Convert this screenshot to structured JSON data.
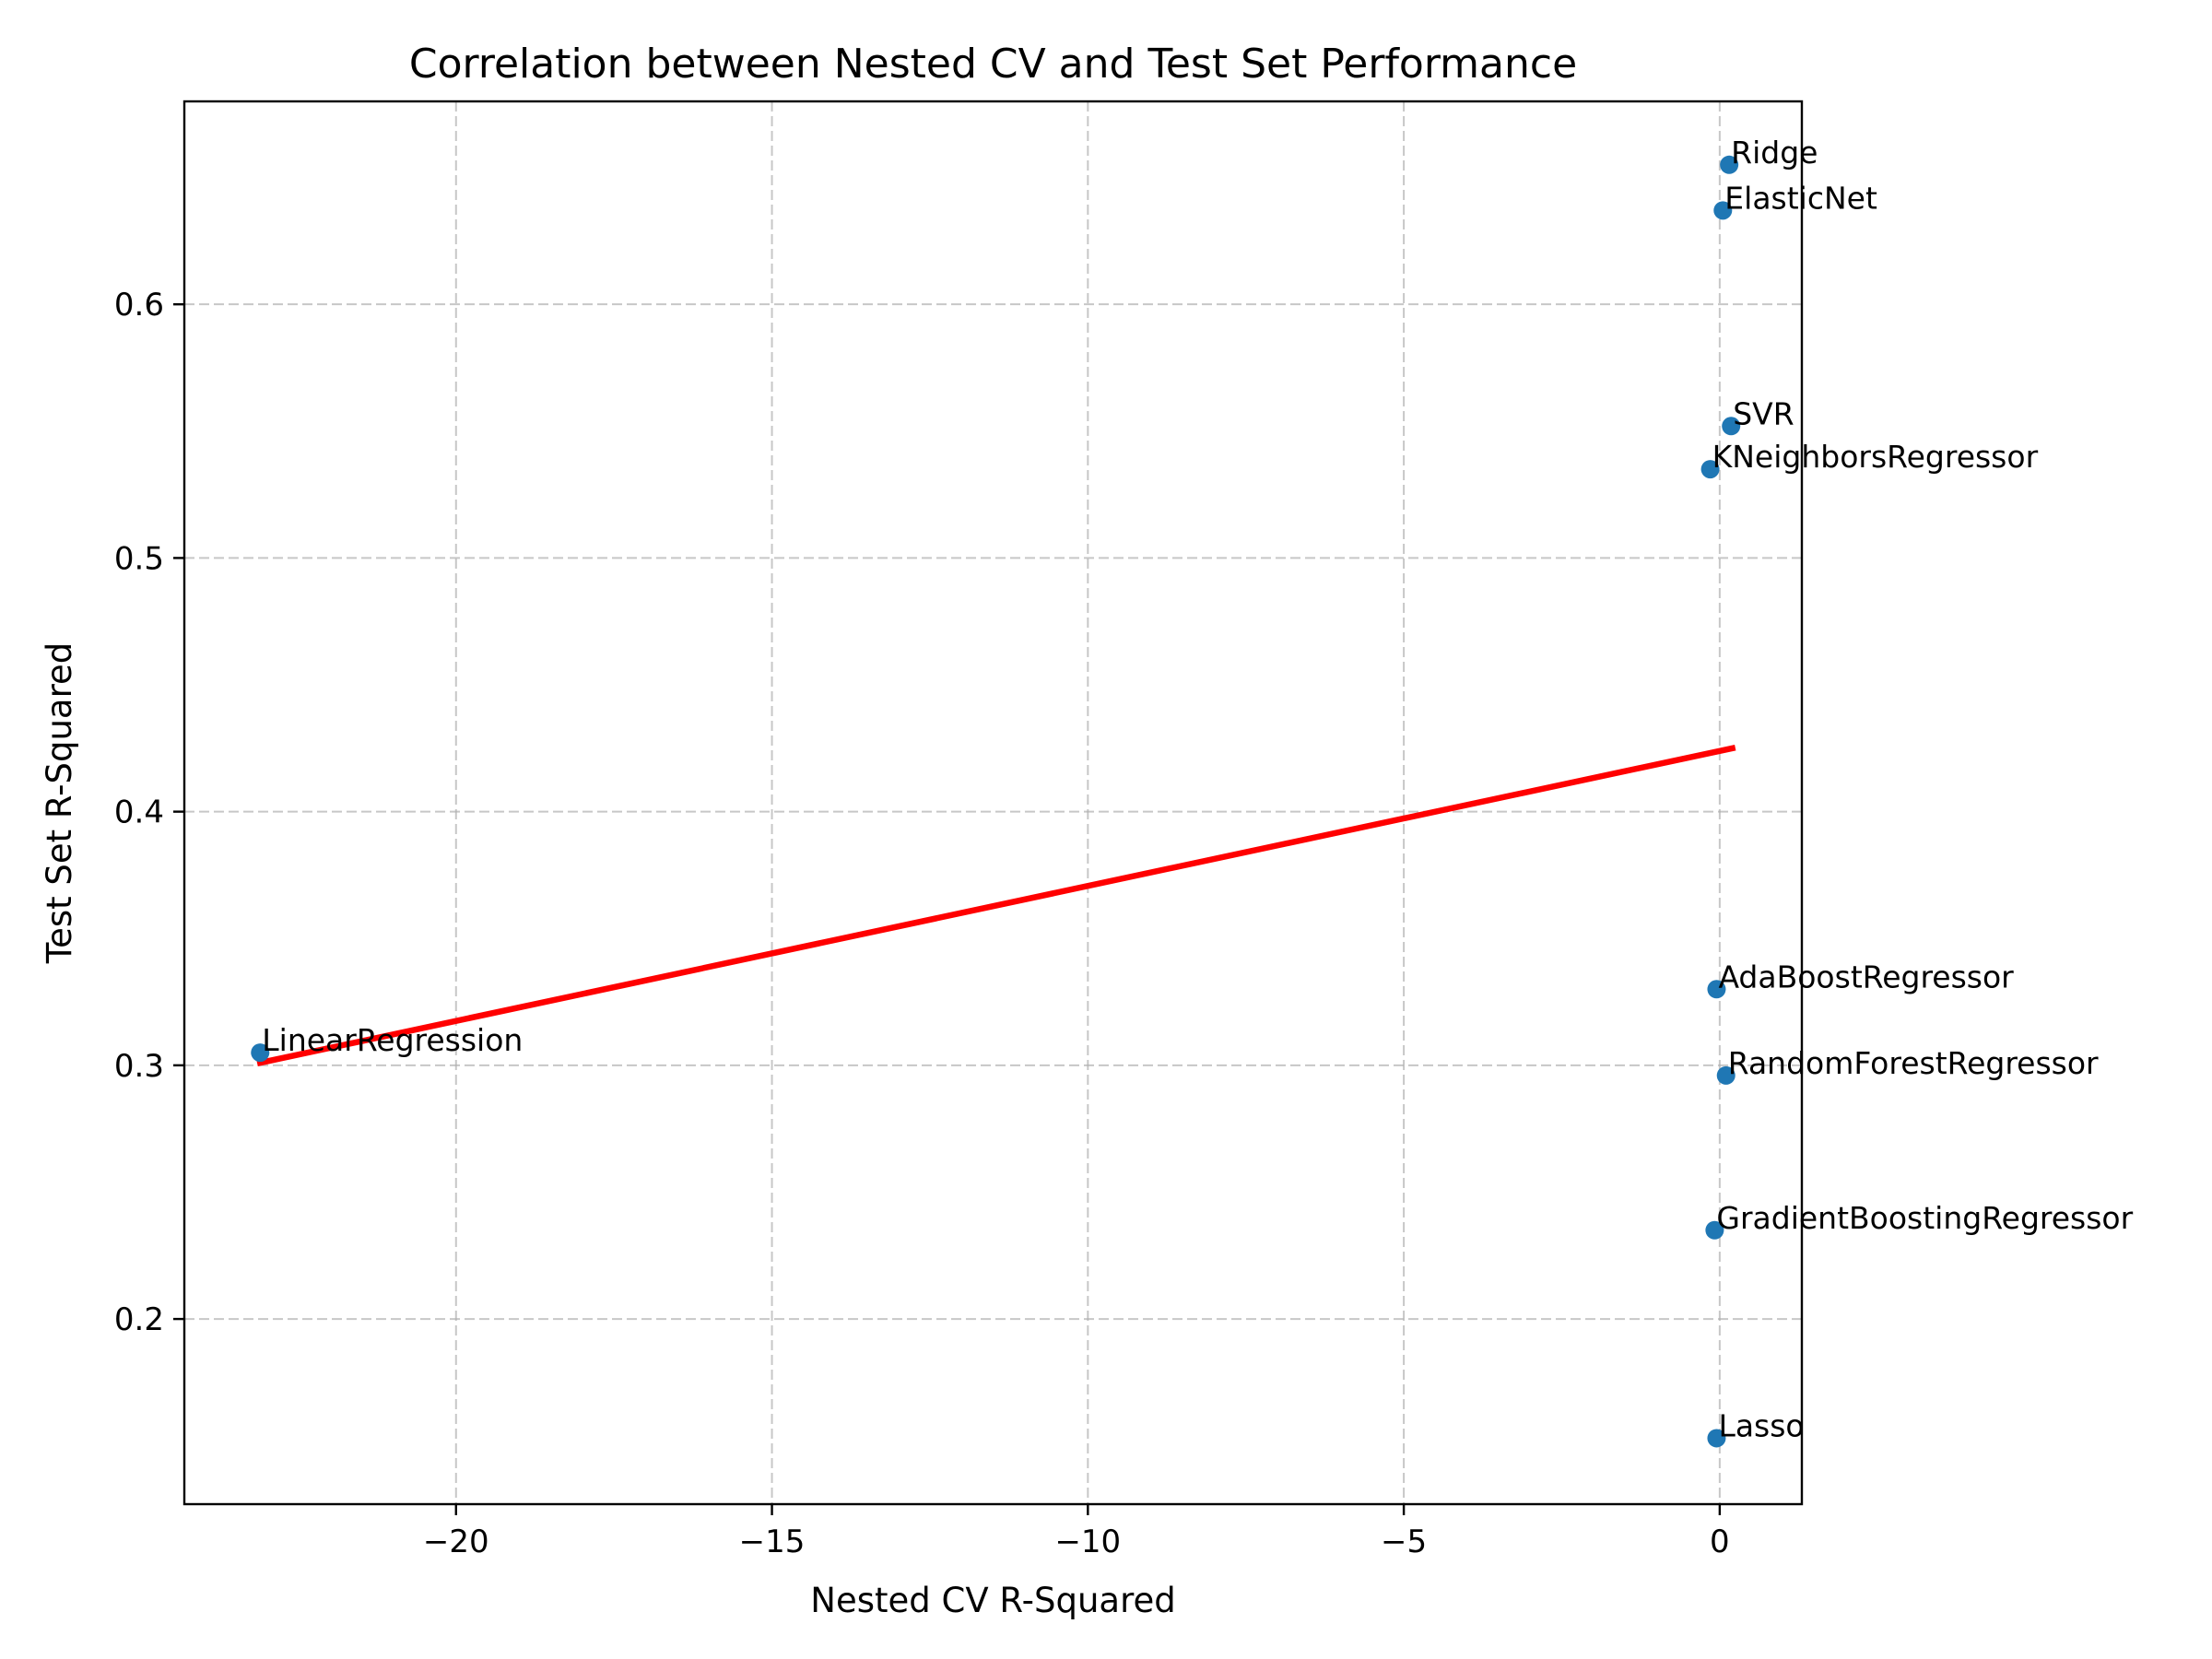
{
  "chart_data": {
    "type": "scatter",
    "title": "Correlation between Nested CV and Test Set Performance",
    "xlabel": "Nested CV R-Squared",
    "ylabel": "Test Set R-Squared",
    "xlim": [
      -24.3,
      1.3
    ],
    "ylim": [
      0.127,
      0.68
    ],
    "xticks": [
      -20,
      -15,
      -10,
      -5,
      0
    ],
    "xtick_labels": [
      "−20",
      "−15",
      "−10",
      "−5",
      "0"
    ],
    "yticks": [
      0.2,
      0.3,
      0.4,
      0.5,
      0.6
    ],
    "ytick_labels": [
      "0.2",
      "0.3",
      "0.4",
      "0.5",
      "0.6"
    ],
    "grid": true,
    "colors": {
      "points": "#1f77b4",
      "fit_line": "#ff0000"
    },
    "points": [
      {
        "label": "Ridge",
        "x": 0.15,
        "y": 0.655
      },
      {
        "label": "ElasticNet",
        "x": 0.05,
        "y": 0.637
      },
      {
        "label": "SVR",
        "x": 0.18,
        "y": 0.552
      },
      {
        "label": "KNeighborsRegressor",
        "x": -0.15,
        "y": 0.535
      },
      {
        "label": "AdaBoostRegressor",
        "x": -0.05,
        "y": 0.33
      },
      {
        "label": "LinearRegression",
        "x": -23.1,
        "y": 0.305
      },
      {
        "label": "RandomForestRegressor",
        "x": 0.1,
        "y": 0.296
      },
      {
        "label": "GradientBoostingRegressor",
        "x": -0.08,
        "y": 0.235
      },
      {
        "label": "Lasso",
        "x": -0.05,
        "y": 0.153
      }
    ],
    "fit_line": {
      "x": [
        -23.1,
        0.2
      ],
      "y": [
        0.301,
        0.425
      ]
    }
  }
}
